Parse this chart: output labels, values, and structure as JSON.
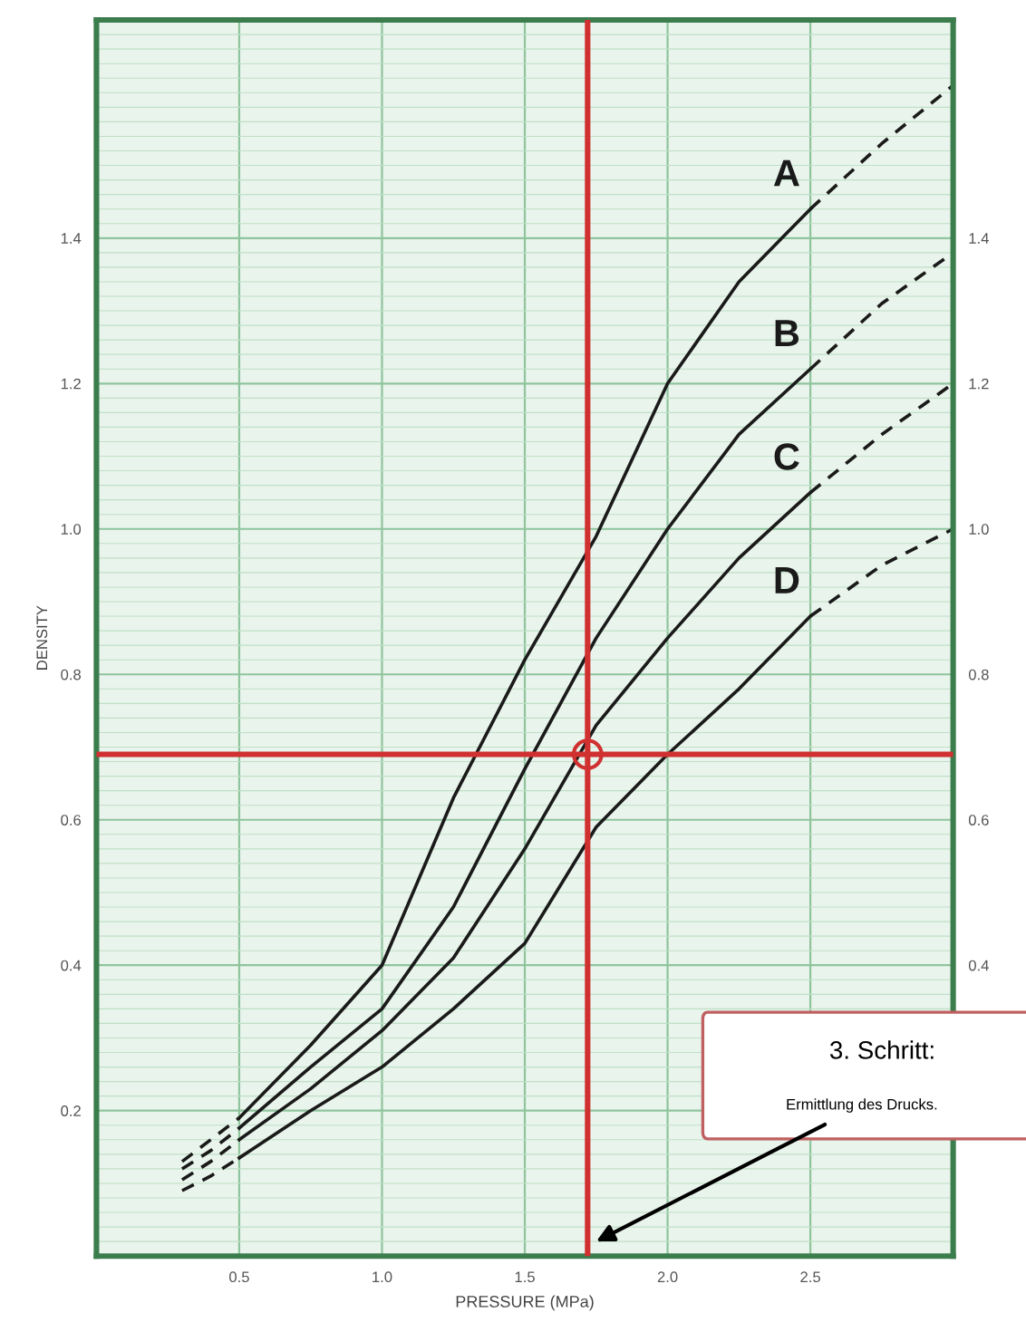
{
  "chart_data": {
    "type": "line",
    "xlabel": "PRESSURE (MPa)",
    "ylabel": "DENSITY",
    "xlim": [
      0,
      3.0
    ],
    "xticks": [
      0.5,
      {
        "value": 1.0,
        "label": "1.0"
      },
      1.5,
      {
        "value": 2.0,
        "label": "2.0"
      },
      2.5
    ],
    "ylim": [
      0,
      1.7
    ],
    "yticks": [
      0.2,
      0.4,
      0.6,
      0.8,
      {
        "value": 1.0,
        "label": "1.0"
      },
      1.2,
      1.4
    ],
    "y2lim": [
      0,
      1.7
    ],
    "y2ticks": [
      0.4,
      0.6,
      0.8,
      {
        "value": 1.0,
        "label": "1.0"
      },
      1.2,
      1.4
    ],
    "grid": true,
    "legend": false,
    "marker": "none",
    "series": [
      {
        "name": "A",
        "color": "#1a1a1a",
        "line_style": "solid",
        "x": [
          0.5,
          0.75,
          1.0,
          1.25,
          1.5,
          1.75,
          2.0,
          2.25,
          2.5
        ],
        "values": [
          0.19,
          0.29,
          0.4,
          0.63,
          0.82,
          0.99,
          1.2,
          1.34,
          1.44
        ]
      },
      {
        "name": "B",
        "color": "#1a1a1a",
        "line_style": "solid",
        "x": [
          0.5,
          0.75,
          1.0,
          1.25,
          1.5,
          1.75,
          2.0,
          2.25,
          2.5
        ],
        "values": [
          0.176,
          0.26,
          0.34,
          0.48,
          0.67,
          0.85,
          1.0,
          1.13,
          1.22
        ]
      },
      {
        "name": "C",
        "color": "#1a1a1a",
        "line_style": "solid",
        "x": [
          0.5,
          0.75,
          1.0,
          1.25,
          1.5,
          1.75,
          2.0,
          2.25,
          2.5
        ],
        "values": [
          0.16,
          0.23,
          0.31,
          0.41,
          0.56,
          0.73,
          0.85,
          0.96,
          1.05
        ]
      },
      {
        "name": "D",
        "color": "#1a1a1a",
        "line_style": "solid",
        "x": [
          0.5,
          0.75,
          1.0,
          1.25,
          1.5,
          1.75,
          2.0,
          2.25,
          2.5
        ],
        "values": [
          0.135,
          0.2,
          0.26,
          0.34,
          0.43,
          0.59,
          0.69,
          0.78,
          0.88
        ]
      },
      {
        "color": "#1a1a1a",
        "line_style": "dashed",
        "x": [
          0.3,
          0.4,
          0.5
        ],
        "values": [
          0.13,
          0.16,
          0.19
        ]
      },
      {
        "color": "#1a1a1a",
        "line_style": "dashed",
        "x": [
          0.3,
          0.4,
          0.5
        ],
        "values": [
          0.12,
          0.145,
          0.176
        ]
      },
      {
        "color": "#1a1a1a",
        "line_style": "dashed",
        "x": [
          0.3,
          0.4,
          0.5
        ],
        "values": [
          0.105,
          0.13,
          0.16
        ]
      },
      {
        "color": "#1a1a1a",
        "line_style": "dashed",
        "x": [
          0.3,
          0.4,
          0.5
        ],
        "values": [
          0.09,
          0.11,
          0.135
        ]
      },
      {
        "color": "#1a1a1a",
        "line_style": "dashed",
        "x": [
          2.5,
          2.75,
          3.0
        ],
        "values": [
          1.44,
          1.53,
          1.61
        ]
      },
      {
        "color": "#1a1a1a",
        "line_style": "dashed",
        "x": [
          2.5,
          2.75,
          3.0
        ],
        "values": [
          1.22,
          1.31,
          1.38
        ]
      },
      {
        "color": "#1a1a1a",
        "line_style": "dashed",
        "x": [
          2.5,
          2.75,
          3.0
        ],
        "values": [
          1.05,
          1.13,
          1.2
        ]
      },
      {
        "color": "#1a1a1a",
        "line_style": "dashed",
        "x": [
          2.5,
          2.75,
          3.0
        ],
        "values": [
          0.88,
          0.95,
          1.0
        ]
      }
    ],
    "ref_lines": [
      {
        "axis": "x",
        "value": 1.72,
        "color": "#d03030"
      },
      {
        "axis": "y",
        "value": 0.69,
        "color": "#d03030"
      }
    ],
    "annotations": [
      "3. Schritt:",
      {
        "text": "Ermittlung des Drucks.",
        "x": 1.75,
        "y": 0.02
      }
    ]
  }
}
